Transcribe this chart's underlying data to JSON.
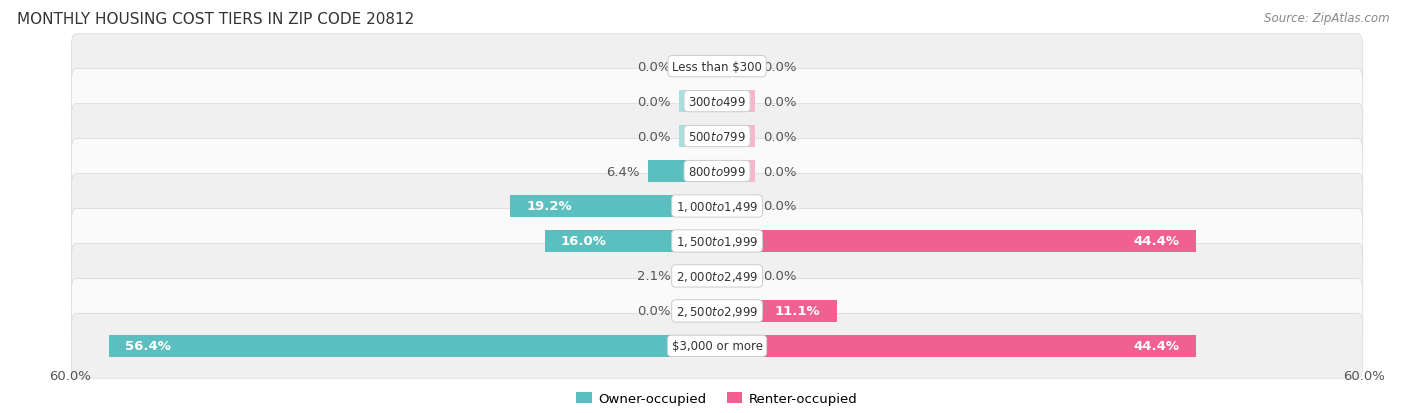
{
  "title": "Monthly Housing Cost Tiers in Zip Code 20812",
  "title_display": "MONTHLY HOUSING COST TIERS IN ZIP CODE 20812",
  "source": "Source: ZipAtlas.com",
  "categories": [
    "Less than $300",
    "$300 to $499",
    "$500 to $799",
    "$800 to $999",
    "$1,000 to $1,499",
    "$1,500 to $1,999",
    "$2,000 to $2,499",
    "$2,500 to $2,999",
    "$3,000 or more"
  ],
  "owner_values": [
    0.0,
    0.0,
    0.0,
    6.4,
    19.2,
    16.0,
    2.1,
    0.0,
    56.4
  ],
  "renter_values": [
    0.0,
    0.0,
    0.0,
    0.0,
    0.0,
    44.4,
    0.0,
    11.1,
    44.4
  ],
  "owner_color": "#5BBFBF",
  "owner_color_light": "#A8DFDF",
  "renter_color": "#F06090",
  "renter_color_light": "#F8B8CC",
  "label_color": "#555555",
  "white_label_color": "#ffffff",
  "background_color": "#ffffff",
  "row_bg_odd": "#f0f0f0",
  "row_bg_even": "#fafafa",
  "axis_limit": 60.0,
  "min_stub": 3.5,
  "bar_height": 0.62,
  "title_fontsize": 11,
  "label_fontsize": 9.5,
  "category_fontsize": 8.5,
  "legend_fontsize": 9.5,
  "source_fontsize": 8.5
}
